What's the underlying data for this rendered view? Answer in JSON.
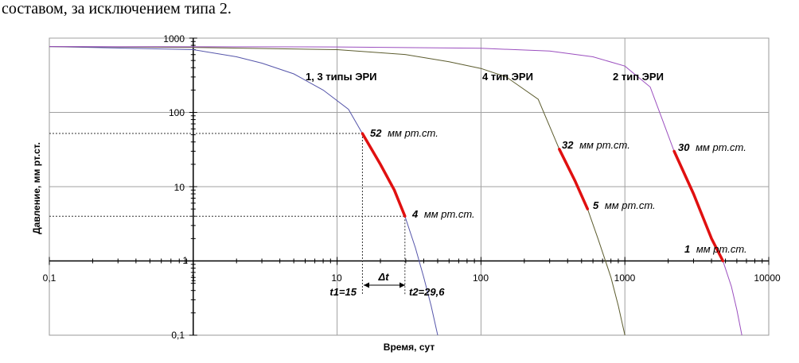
{
  "caption": "составом, за исключением типа 2.",
  "chart_data": {
    "type": "line",
    "xlabel": "Время, сут",
    "ylabel": "Давление, мм рт.ст.",
    "x_scale": "log",
    "y_scale": "log",
    "xlim": [
      0.1,
      10000
    ],
    "ylim": [
      0.1,
      1000
    ],
    "x_axis_crossing_y": 1,
    "x_ticks": [
      "0,1",
      "1",
      "10",
      "100",
      "1000",
      "10000"
    ],
    "y_ticks": [
      "1000",
      "100",
      "10",
      "1",
      "0,1"
    ],
    "grid": true,
    "colors": {
      "series_1_3": "#5555aa",
      "series_4": "#5c5c2e",
      "series_2": "#9b4fbf",
      "highlight": "#e01010",
      "guide": "#333333"
    },
    "series": [
      {
        "name": "1, 3 типы ЭРИ",
        "points": [
          [
            0.1,
            770
          ],
          [
            1,
            700
          ],
          [
            2,
            560
          ],
          [
            3,
            460
          ],
          [
            5,
            330
          ],
          [
            8,
            200
          ],
          [
            12,
            110
          ],
          [
            15,
            52
          ],
          [
            20,
            20
          ],
          [
            25,
            9
          ],
          [
            29.6,
            4
          ],
          [
            35,
            1.5
          ],
          [
            40,
            0.6
          ],
          [
            45,
            0.25
          ],
          [
            50,
            0.1
          ]
        ],
        "highlight": [
          [
            15,
            52
          ],
          [
            20,
            20
          ],
          [
            25,
            9
          ],
          [
            29.6,
            4
          ]
        ]
      },
      {
        "name": "4 тип ЭРИ",
        "points": [
          [
            0.1,
            770
          ],
          [
            1,
            750
          ],
          [
            10,
            700
          ],
          [
            30,
            600
          ],
          [
            60,
            480
          ],
          [
            100,
            390
          ],
          [
            150,
            300
          ],
          [
            250,
            150
          ],
          [
            350,
            32
          ],
          [
            450,
            12
          ],
          [
            550,
            5
          ],
          [
            650,
            2
          ],
          [
            800,
            0.6
          ],
          [
            900,
            0.25
          ],
          [
            1000,
            0.1
          ]
        ],
        "highlight": [
          [
            350,
            32
          ],
          [
            450,
            12
          ],
          [
            550,
            5
          ]
        ]
      },
      {
        "name": "2 тип ЭРИ",
        "points": [
          [
            0.1,
            770
          ],
          [
            10,
            760
          ],
          [
            100,
            730
          ],
          [
            300,
            670
          ],
          [
            600,
            560
          ],
          [
            1000,
            420
          ],
          [
            1500,
            220
          ],
          [
            2200,
            30
          ],
          [
            3000,
            8
          ],
          [
            4000,
            2
          ],
          [
            4800,
            1
          ],
          [
            5500,
            0.45
          ],
          [
            6000,
            0.22
          ],
          [
            6500,
            0.1
          ]
        ],
        "highlight": [
          [
            2200,
            30
          ],
          [
            3000,
            8
          ],
          [
            4000,
            2
          ],
          [
            4800,
            1
          ]
        ]
      }
    ],
    "annotations": [
      {
        "num": "52",
        "unit": "мм рт.ст."
      },
      {
        "num": "4",
        "unit": "мм рт.ст."
      },
      {
        "num": "32",
        "unit": "мм рт.ст."
      },
      {
        "num": "5",
        "unit": "мм рт.ст."
      },
      {
        "num": "30",
        "unit": "мм рт.ст."
      },
      {
        "num": "1",
        "unit": "мм рт.ст."
      }
    ],
    "time_markers": {
      "t1": "t1=15",
      "t2": "t2=29,6",
      "delta": "Δt",
      "t1_value": 15,
      "t2_value": 29.6,
      "p1_value": 52,
      "p2_value": 4
    }
  }
}
